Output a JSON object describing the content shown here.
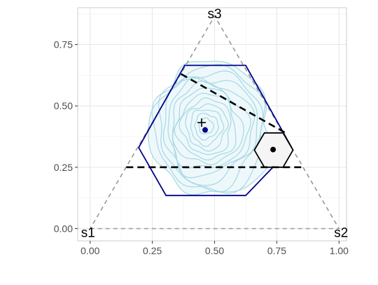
{
  "chart_data": {
    "type": "scatter",
    "title": "",
    "xlabel": "",
    "ylabel": "",
    "xlim": [
      -0.05,
      1.03
    ],
    "ylim": [
      -0.05,
      0.9
    ],
    "x_ticks": [
      0.0,
      0.25,
      0.5,
      0.75,
      1.0
    ],
    "x_tick_labels": [
      "0.00",
      "0.25",
      "0.50",
      "0.75",
      "1.00"
    ],
    "y_ticks": [
      0.0,
      0.25,
      0.5,
      0.75
    ],
    "y_tick_labels": [
      "0.00",
      "0.25",
      "0.50",
      "0.75"
    ],
    "grid": true,
    "simplex": {
      "vertices": [
        [
          0.0,
          0.0
        ],
        [
          1.0,
          0.0
        ],
        [
          0.5,
          0.866
        ]
      ],
      "vertex_labels": [
        "s1",
        "s2",
        "s3"
      ],
      "color": "#999999",
      "style": "dashed"
    },
    "large_hexagon": {
      "points": [
        [
          0.38,
          0.665
        ],
        [
          0.625,
          0.665
        ],
        [
          0.81,
          0.33
        ],
        [
          0.625,
          0.135
        ],
        [
          0.305,
          0.135
        ],
        [
          0.195,
          0.33
        ]
      ],
      "color": "#00008b"
    },
    "small_hexagon": {
      "points": [
        [
          0.7,
          0.39
        ],
        [
          0.775,
          0.39
        ],
        [
          0.815,
          0.32
        ],
        [
          0.775,
          0.25
        ],
        [
          0.7,
          0.25
        ],
        [
          0.66,
          0.32
        ]
      ],
      "color": "#000000",
      "fill": "#f5f5f5"
    },
    "dashed_lines": [
      {
        "from": [
          0.145,
          0.25
        ],
        "to": [
          0.86,
          0.25
        ]
      },
      {
        "from": [
          0.365,
          0.63
        ],
        "to": [
          0.785,
          0.39
        ]
      }
    ],
    "density_contours": {
      "color": "#a6d8e4",
      "center": [
        0.46,
        0.4
      ],
      "levels": 13
    },
    "points": [
      {
        "x": 0.462,
        "y": 0.402,
        "shape": "circle",
        "color": "#00008b"
      },
      {
        "x": 0.735,
        "y": 0.322,
        "shape": "circle",
        "color": "#000000"
      },
      {
        "x": 0.448,
        "y": 0.432,
        "shape": "plus",
        "color": "#000000"
      }
    ]
  }
}
